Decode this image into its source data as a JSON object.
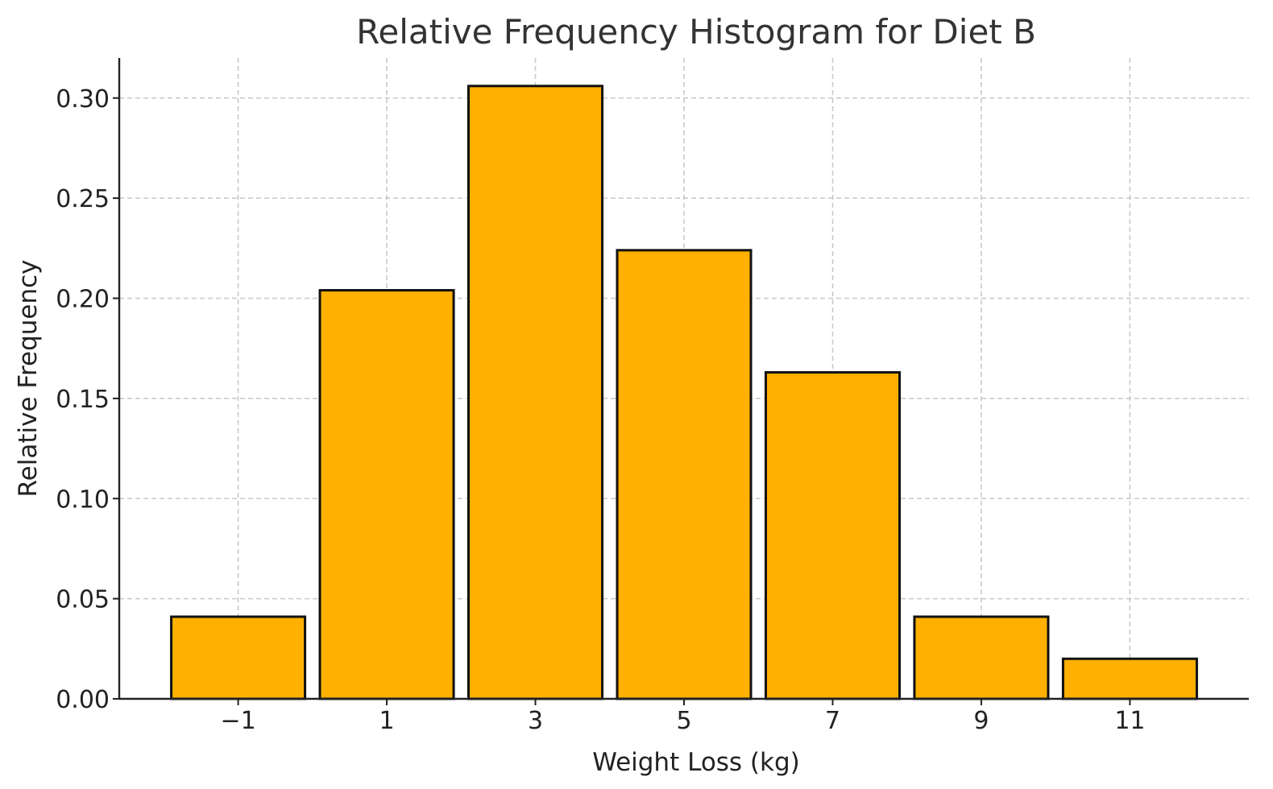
{
  "chart_data": {
    "type": "bar",
    "title": "Relative Frequency Histogram for Diet B",
    "xlabel": "Weight Loss (kg)",
    "ylabel": "Relative Frequency",
    "categories": [
      "−1",
      "1",
      "3",
      "5",
      "7",
      "9",
      "11"
    ],
    "x_values": [
      -1,
      1,
      3,
      5,
      7,
      9,
      11
    ],
    "values": [
      0.041,
      0.204,
      0.306,
      0.224,
      0.163,
      0.041,
      0.02
    ],
    "bin_width": 2,
    "xlim": [
      -2.6,
      12.6
    ],
    "ylim": [
      0,
      0.32
    ],
    "y_ticks": [
      0,
      0.05,
      0.1,
      0.15,
      0.2,
      0.25,
      0.3
    ],
    "y_tick_labels": [
      "0.00",
      "0.05",
      "0.10",
      "0.15",
      "0.20",
      "0.25",
      "0.30"
    ],
    "grid": true,
    "bar_color": "#ffb000",
    "edge_color": "#111111"
  }
}
